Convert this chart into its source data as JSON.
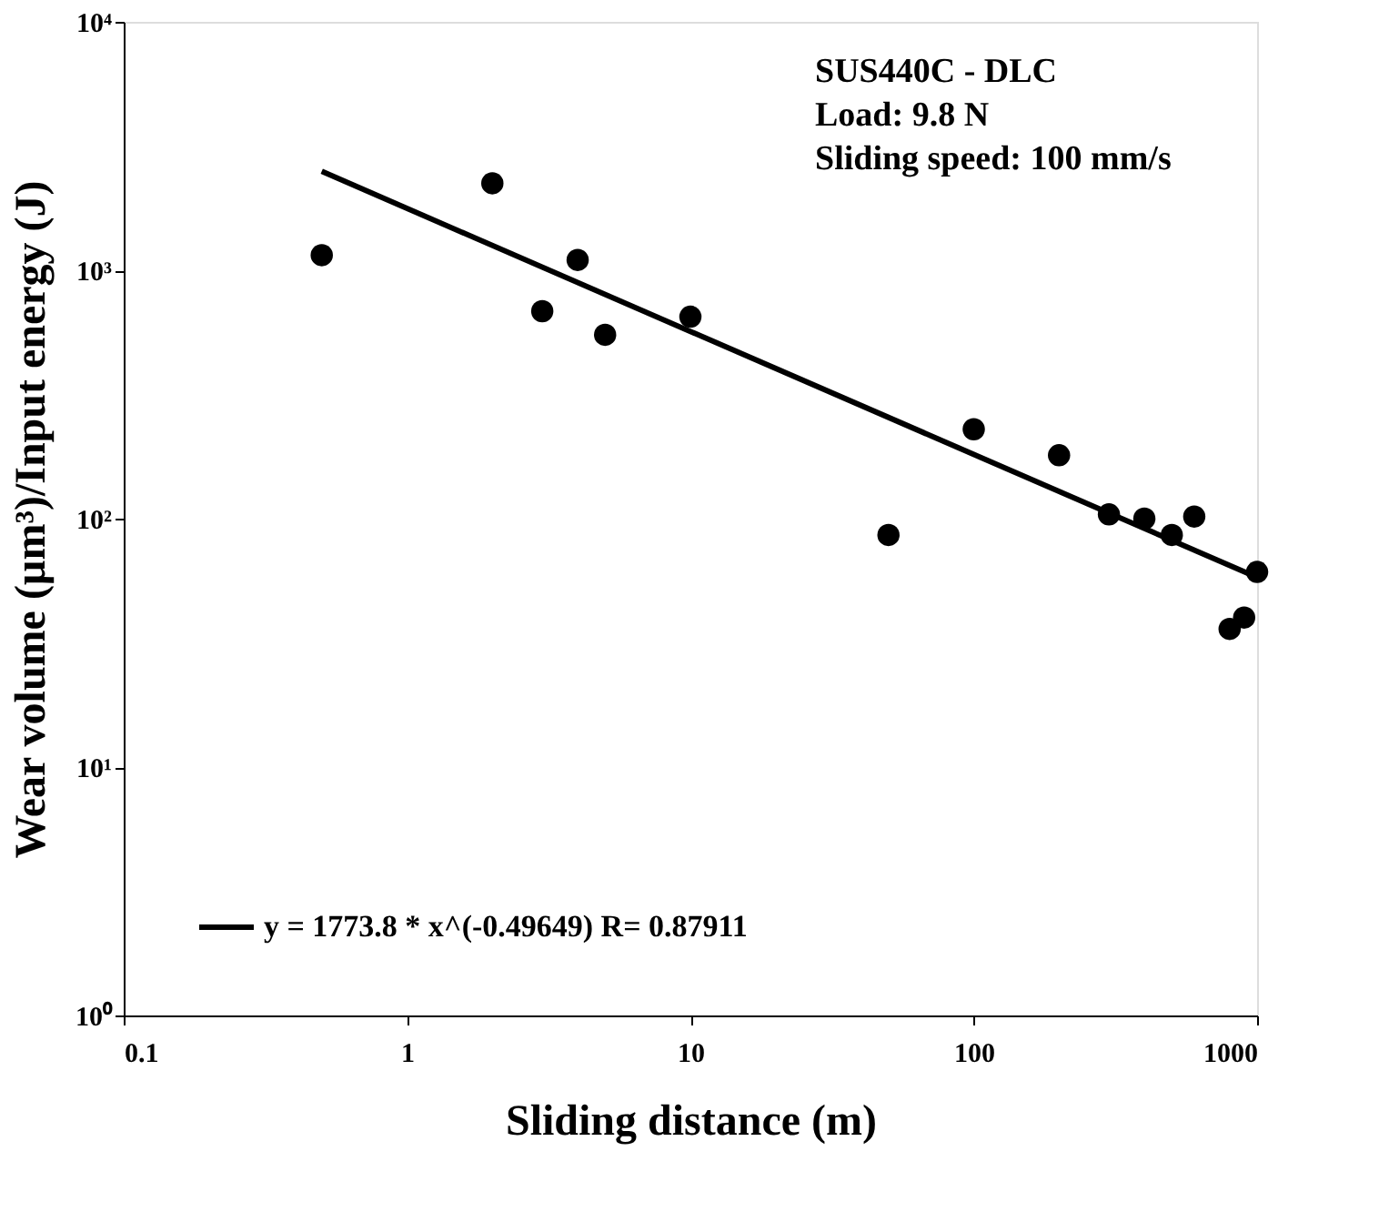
{
  "chart_data": {
    "type": "scatter",
    "xlabel": "Sliding distance (m)",
    "ylabel": "Wear volume (µm³)/Input energy (J)",
    "log": "xy",
    "xlim": [
      0.1,
      1000
    ],
    "ylim": [
      1,
      10000
    ],
    "xticks": [
      0.1,
      1,
      10,
      100,
      {
        "value": 1000,
        "label": "1000"
      }
    ],
    "yticks": [
      {
        "value": 1,
        "label": "10⁰"
      },
      {
        "value": 10,
        "label": "10¹"
      },
      {
        "value": 100,
        "label": "10²"
      },
      {
        "value": 1000,
        "label": "10³"
      },
      {
        "value": 10000,
        "label": "10⁴"
      }
    ],
    "grid": false,
    "legend": "bottom left",
    "marker": "circle",
    "annotations": [
      "SUS440C - DLC",
      "Load: 9.8 N",
      "Sliding speed: 100 mm/s"
    ],
    "series": [
      {
        "color": "#000000",
        "x": [
          0.5,
          2,
          3,
          4,
          5,
          10,
          50,
          100,
          200,
          300,
          400,
          500,
          600,
          800,
          900,
          1000
        ],
        "values": [
          1150,
          2240,
          684,
          1100,
          550,
          650,
          86,
          229,
          180,
          104,
          100,
          86,
          102,
          36,
          40,
          61
        ]
      },
      {
        "type": "line",
        "name": "y = 1773.8 * x^(-0.49649)   R= 0.87911",
        "color": "#000000",
        "line_style": "solid",
        "marker": "none",
        "x": [
          0.5,
          1000
        ],
        "values": [
          2500,
          58
        ]
      }
    ]
  }
}
